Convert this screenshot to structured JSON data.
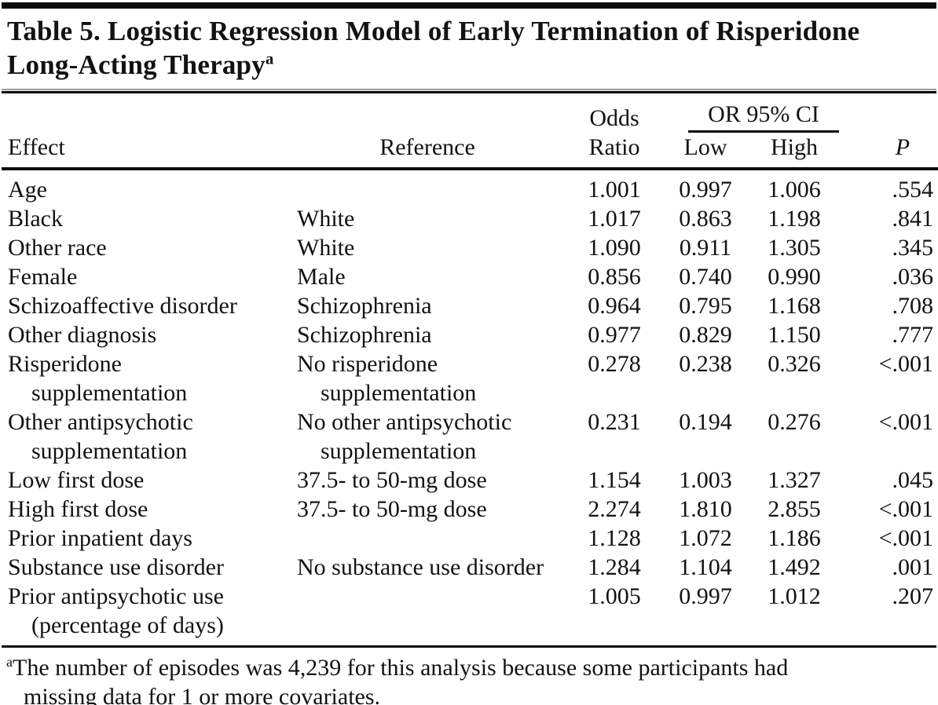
{
  "colors": {
    "background": "#ffffff",
    "ink": "#121212",
    "rule": "#0b0b0b"
  },
  "title": {
    "text": "Table 5. Logistic Regression Model of Early Termination of Risperidone\nLong-Acting Therapy",
    "marker": "a"
  },
  "table": {
    "headers": {
      "effect": "Effect",
      "reference": "Reference",
      "odds_line1": "Odds",
      "odds_line2": "Ratio",
      "ci_group": "OR 95% CI",
      "ci_low": "Low",
      "ci_high": "High",
      "p": "P"
    },
    "rows": [
      {
        "effect": "Age",
        "reference": "",
        "odds_ratio": "1.001",
        "ci_low": "0.997",
        "ci_high": "1.006",
        "p": ".554"
      },
      {
        "effect": "Black",
        "reference": "White",
        "odds_ratio": "1.017",
        "ci_low": "0.863",
        "ci_high": "1.198",
        "p": ".841"
      },
      {
        "effect": "Other race",
        "reference": "White",
        "odds_ratio": "1.090",
        "ci_low": "0.911",
        "ci_high": "1.305",
        "p": ".345"
      },
      {
        "effect": "Female",
        "reference": "Male",
        "odds_ratio": "0.856",
        "ci_low": "0.740",
        "ci_high": "0.990",
        "p": ".036"
      },
      {
        "effect": "Schizoaffective disorder",
        "reference": "Schizophrenia",
        "odds_ratio": "0.964",
        "ci_low": "0.795",
        "ci_high": "1.168",
        "p": ".708"
      },
      {
        "effect": "Other diagnosis",
        "reference": "Schizophrenia",
        "odds_ratio": "0.977",
        "ci_low": "0.829",
        "ci_high": "1.150",
        "p": ".777"
      },
      {
        "effect": "Risperidone\nsupplementation",
        "reference": "No risperidone\nsupplementation",
        "odds_ratio": "0.278",
        "ci_low": "0.238",
        "ci_high": "0.326",
        "p": "<.001"
      },
      {
        "effect": "Other antipsychotic\nsupplementation",
        "reference": "No other antipsychotic\nsupplementation",
        "odds_ratio": "0.231",
        "ci_low": "0.194",
        "ci_high": "0.276",
        "p": "<.001"
      },
      {
        "effect": "Low first dose",
        "reference": "37.5- to 50-mg dose",
        "odds_ratio": "1.154",
        "ci_low": "1.003",
        "ci_high": "1.327",
        "p": ".045"
      },
      {
        "effect": "High first dose",
        "reference": "37.5- to 50-mg dose",
        "odds_ratio": "2.274",
        "ci_low": "1.810",
        "ci_high": "2.855",
        "p": "<.001"
      },
      {
        "effect": "Prior inpatient days",
        "reference": "",
        "odds_ratio": "1.128",
        "ci_low": "1.072",
        "ci_high": "1.186",
        "p": "<.001"
      },
      {
        "effect": "Substance use disorder",
        "reference": "No substance use disorder",
        "odds_ratio": "1.284",
        "ci_low": "1.104",
        "ci_high": "1.492",
        "p": ".001"
      },
      {
        "effect": "Prior antipsychotic use\n(percentage of days)",
        "reference": "",
        "odds_ratio": "1.005",
        "ci_low": "0.997",
        "ci_high": "1.012",
        "p": ".207"
      }
    ]
  },
  "footnote": {
    "marker": "a",
    "text": "The number of episodes was 4,239 for this analysis because some participants had\nmissing data for 1 or more covariates."
  }
}
